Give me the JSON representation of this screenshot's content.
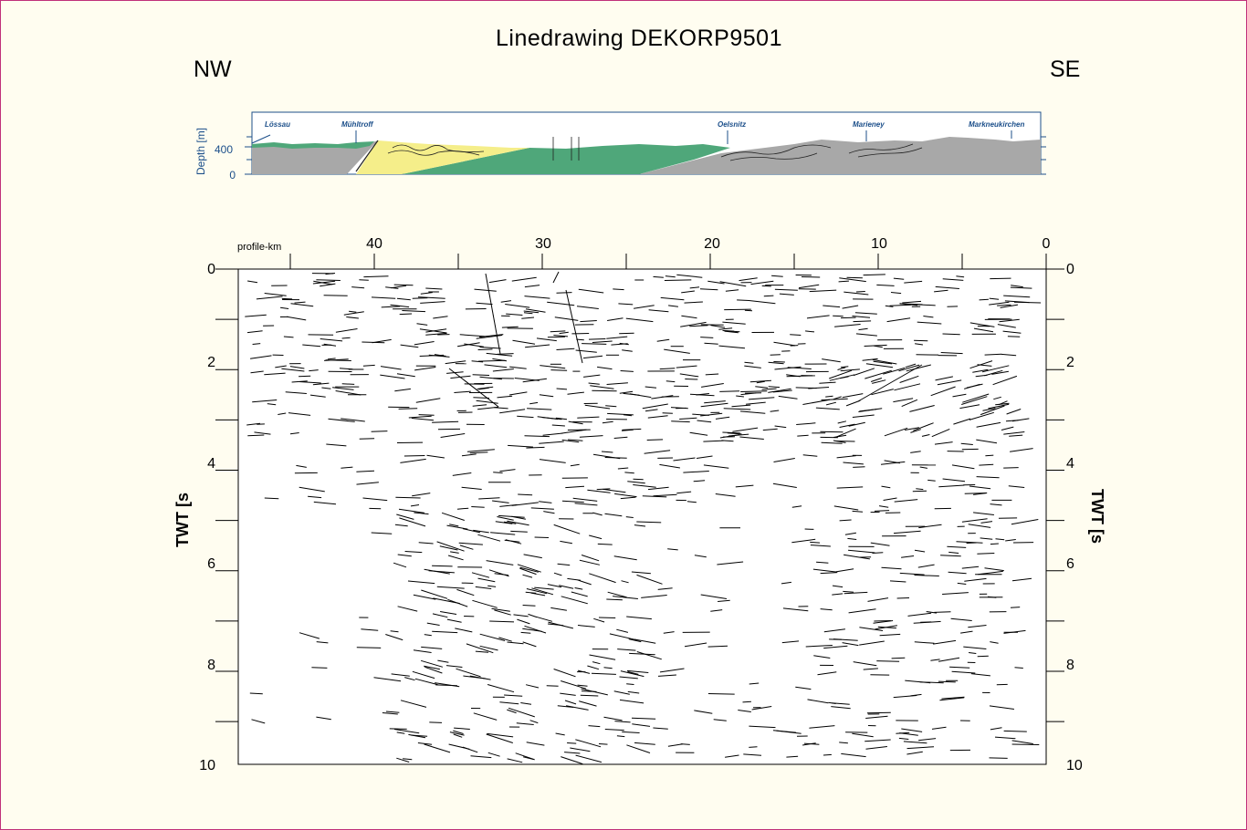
{
  "title": "Linedrawing DEKORP9501",
  "orientation": {
    "left": "NW",
    "right": "SE"
  },
  "cross_section": {
    "depth_axis_label": "Depth [m]",
    "depth_ticks": [
      "400",
      "0"
    ],
    "locations": [
      "Lössau",
      "Mühltroff",
      "Oelsnitz",
      "Marieney",
      "Markneukirchen"
    ],
    "colors": {
      "green": "#4fa77a",
      "yellow": "#f5ee8a",
      "grey": "#a8a8a8",
      "frame": "#1c4f8a"
    }
  },
  "section": {
    "profile_label": "profile-km",
    "km_ticks": [
      "40",
      "30",
      "20",
      "10",
      "0"
    ],
    "twt_ticks": [
      "0",
      "2",
      "4",
      "6",
      "8",
      "10"
    ],
    "twt_label_left": "TWT [s",
    "twt_label_right": "TWT [s"
  }
}
